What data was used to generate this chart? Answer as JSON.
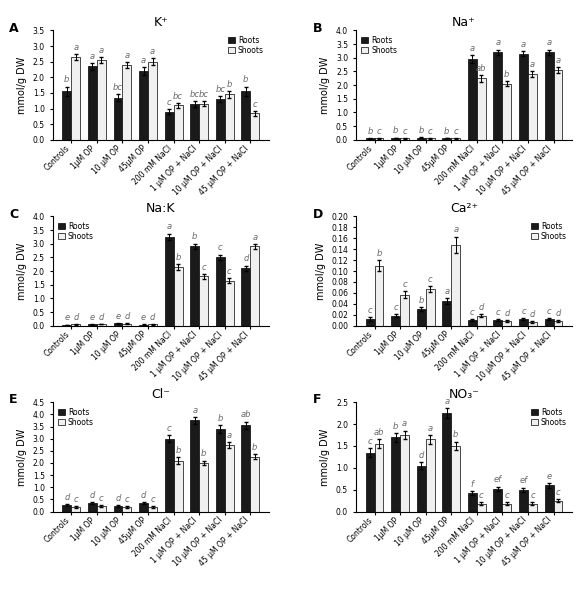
{
  "categories": [
    "Controls",
    "1μM OP",
    "10 μM OP",
    "45μM OP",
    "200 mM NaCl",
    "1 μM OP + NaCl",
    "10 μM OP + NaCl",
    "45 μM OP + NaCl"
  ],
  "panels": [
    {
      "label": "A",
      "title": "K⁺",
      "ylabel": "mmol/g DW",
      "ylim": [
        0,
        3.5
      ],
      "yticks": [
        0.0,
        0.5,
        1.0,
        1.5,
        2.0,
        2.5,
        3.0,
        3.5
      ],
      "roots": [
        1.55,
        2.35,
        1.35,
        2.2,
        0.9,
        1.15,
        1.3,
        1.55
      ],
      "shoots": [
        2.65,
        2.55,
        2.4,
        2.5,
        1.1,
        1.15,
        1.45,
        0.85
      ],
      "roots_err": [
        0.15,
        0.1,
        0.1,
        0.12,
        0.08,
        0.1,
        0.1,
        0.15
      ],
      "shoots_err": [
        0.1,
        0.1,
        0.1,
        0.12,
        0.08,
        0.08,
        0.1,
        0.08
      ],
      "roots_letters": [
        "b",
        "a",
        "bc",
        "a",
        "c",
        "bc",
        "bc",
        "b"
      ],
      "shoots_letters": [
        "a",
        "a",
        "a",
        "a",
        "bc",
        "bc",
        "b",
        "c"
      ],
      "legend_loc": "upper right"
    },
    {
      "label": "B",
      "title": "Na⁺",
      "ylabel": "mmol/g DW",
      "ylim": [
        0,
        4.0
      ],
      "yticks": [
        0.0,
        0.5,
        1.0,
        1.5,
        2.0,
        2.5,
        3.0,
        3.5,
        4.0
      ],
      "roots": [
        0.05,
        0.07,
        0.08,
        0.06,
        2.95,
        3.2,
        3.15,
        3.2
      ],
      "shoots": [
        0.05,
        0.05,
        0.05,
        0.05,
        2.25,
        2.05,
        2.4,
        2.55
      ],
      "roots_err": [
        0.01,
        0.01,
        0.01,
        0.01,
        0.15,
        0.1,
        0.1,
        0.1
      ],
      "shoots_err": [
        0.01,
        0.01,
        0.01,
        0.01,
        0.12,
        0.1,
        0.1,
        0.1
      ],
      "roots_letters": [
        "b",
        "b",
        "b",
        "b",
        "a",
        "a",
        "a",
        "a"
      ],
      "shoots_letters": [
        "c",
        "c",
        "c",
        "c",
        "ab",
        "b",
        "a",
        "a"
      ],
      "legend_loc": "upper left"
    },
    {
      "label": "C",
      "title": "Na:K",
      "ylabel": "mmol/g DW",
      "ylim": [
        0,
        4.0
      ],
      "yticks": [
        0.0,
        0.5,
        1.0,
        1.5,
        2.0,
        2.5,
        3.0,
        3.5,
        4.0
      ],
      "roots": [
        0.03,
        0.05,
        0.08,
        0.04,
        3.25,
        2.9,
        2.5,
        2.1
      ],
      "shoots": [
        0.05,
        0.06,
        0.07,
        0.05,
        2.15,
        1.8,
        1.65,
        2.9
      ],
      "roots_err": [
        0.01,
        0.01,
        0.01,
        0.01,
        0.12,
        0.1,
        0.1,
        0.1
      ],
      "shoots_err": [
        0.01,
        0.01,
        0.01,
        0.01,
        0.1,
        0.1,
        0.1,
        0.08
      ],
      "roots_letters": [
        "e",
        "e",
        "e",
        "e",
        "a",
        "b",
        "c",
        "d"
      ],
      "shoots_letters": [
        "d",
        "d",
        "d",
        "d",
        "b",
        "c",
        "c",
        "a"
      ],
      "legend_loc": "upper left"
    },
    {
      "label": "D",
      "title": "Ca²⁺",
      "ylabel": "mmol/g DW",
      "ylim": [
        0,
        0.2
      ],
      "yticks": [
        0.0,
        0.02,
        0.04,
        0.06,
        0.08,
        0.1,
        0.12,
        0.14,
        0.16,
        0.18,
        0.2
      ],
      "roots": [
        0.012,
        0.018,
        0.03,
        0.045,
        0.01,
        0.01,
        0.012,
        0.012
      ],
      "shoots": [
        0.11,
        0.057,
        0.067,
        0.148,
        0.018,
        0.008,
        0.007,
        0.008
      ],
      "roots_err": [
        0.003,
        0.003,
        0.004,
        0.005,
        0.002,
        0.002,
        0.002,
        0.002
      ],
      "shoots_err": [
        0.01,
        0.006,
        0.006,
        0.015,
        0.003,
        0.002,
        0.002,
        0.002
      ],
      "roots_letters": [
        "c",
        "c",
        "b",
        "a",
        "c",
        "c",
        "c",
        "c"
      ],
      "shoots_letters": [
        "b",
        "c",
        "c",
        "a",
        "d",
        "d",
        "d",
        "d"
      ],
      "legend_loc": "upper right"
    },
    {
      "label": "E",
      "title": "Cl⁻",
      "ylabel": "mmol/g DW",
      "ylim": [
        0,
        4.5
      ],
      "yticks": [
        0.0,
        0.5,
        1.0,
        1.5,
        2.0,
        2.5,
        3.0,
        3.5,
        4.0,
        4.5
      ],
      "roots": [
        0.28,
        0.35,
        0.22,
        0.35,
        3.0,
        3.75,
        3.4,
        3.55
      ],
      "shoots": [
        0.18,
        0.22,
        0.18,
        0.18,
        2.1,
        2.0,
        2.75,
        2.25
      ],
      "roots_err": [
        0.04,
        0.05,
        0.04,
        0.05,
        0.15,
        0.15,
        0.15,
        0.15
      ],
      "shoots_err": [
        0.03,
        0.04,
        0.03,
        0.03,
        0.15,
        0.1,
        0.12,
        0.1
      ],
      "roots_letters": [
        "d",
        "d",
        "d",
        "d",
        "c",
        "a",
        "b",
        "ab"
      ],
      "shoots_letters": [
        "c",
        "c",
        "c",
        "c",
        "b",
        "b",
        "a",
        "b"
      ],
      "legend_loc": "upper left"
    },
    {
      "label": "F",
      "title": "NO₃⁻",
      "ylabel": "mmol/g DW",
      "ylim": [
        0,
        2.5
      ],
      "yticks": [
        0.0,
        0.5,
        1.0,
        1.5,
        2.0,
        2.5
      ],
      "roots": [
        1.35,
        1.7,
        1.05,
        2.25,
        0.42,
        0.52,
        0.5,
        0.6
      ],
      "shoots": [
        1.55,
        1.75,
        1.65,
        1.5,
        0.18,
        0.18,
        0.18,
        0.25
      ],
      "roots_err": [
        0.1,
        0.1,
        0.08,
        0.12,
        0.05,
        0.05,
        0.05,
        0.05
      ],
      "shoots_err": [
        0.1,
        0.1,
        0.1,
        0.1,
        0.03,
        0.03,
        0.03,
        0.04
      ],
      "roots_letters": [
        "c",
        "b",
        "d",
        "a",
        "f",
        "ef",
        "ef",
        "e"
      ],
      "shoots_letters": [
        "ab",
        "a",
        "a",
        "b",
        "c",
        "c",
        "c",
        "c"
      ],
      "legend_loc": "upper right"
    }
  ],
  "bar_color_roots": "#1a1a1a",
  "bar_color_shoots": "#f0f0f0",
  "bar_edge_color": "black",
  "bar_width": 0.35,
  "letter_fontsize": 6,
  "axis_label_fontsize": 7,
  "tick_fontsize": 5.5,
  "title_fontsize": 9,
  "panel_label_fontsize": 9
}
